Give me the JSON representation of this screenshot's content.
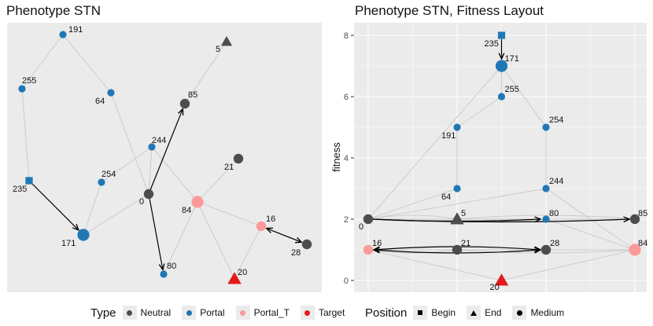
{
  "colors": {
    "Neutral": "#4d4d4d",
    "Portal": "#1f78b4",
    "Portal_T": "#fb9a99",
    "Target": "#e31a1c",
    "panel": "#ebebeb",
    "grid": "#ffffff",
    "edge": "#cccccc"
  },
  "left_panel": {
    "title": "Phenotype STN",
    "nodes": [
      {
        "id": "191",
        "type": "Portal",
        "position": "Medium",
        "size": "small"
      },
      {
        "id": "5",
        "type": "Neutral",
        "position": "End",
        "size": "medium"
      },
      {
        "id": "255",
        "type": "Portal",
        "position": "Medium",
        "size": "small"
      },
      {
        "id": "64",
        "type": "Portal",
        "position": "Medium",
        "size": "small"
      },
      {
        "id": "85",
        "type": "Neutral",
        "position": "Medium",
        "size": "medium"
      },
      {
        "id": "244",
        "type": "Portal",
        "position": "Medium",
        "size": "small"
      },
      {
        "id": "21",
        "type": "Neutral",
        "position": "Medium",
        "size": "medium"
      },
      {
        "id": "235",
        "type": "Portal",
        "position": "Begin",
        "size": "small"
      },
      {
        "id": "254",
        "type": "Portal",
        "position": "Medium",
        "size": "small"
      },
      {
        "id": "0",
        "type": "Neutral",
        "position": "Medium",
        "size": "medium"
      },
      {
        "id": "84",
        "type": "Portal_T",
        "position": "Medium",
        "size": "large"
      },
      {
        "id": "16",
        "type": "Portal_T",
        "position": "Medium",
        "size": "medium"
      },
      {
        "id": "171",
        "type": "Portal",
        "position": "Medium",
        "size": "large"
      },
      {
        "id": "28",
        "type": "Neutral",
        "position": "Medium",
        "size": "medium"
      },
      {
        "id": "80",
        "type": "Portal",
        "position": "Medium",
        "size": "small"
      },
      {
        "id": "20",
        "type": "Target",
        "position": "End",
        "size": "large"
      }
    ],
    "edges": [
      [
        "191",
        "255"
      ],
      [
        "191",
        "64"
      ],
      [
        "255",
        "235"
      ],
      [
        "64",
        "0"
      ],
      [
        "244",
        "0"
      ],
      [
        "244",
        "254"
      ],
      [
        "244",
        "84"
      ],
      [
        "254",
        "171"
      ],
      [
        "0",
        "171"
      ],
      [
        "84",
        "21"
      ],
      [
        "84",
        "80"
      ],
      [
        "84",
        "20"
      ],
      [
        "84",
        "16"
      ],
      [
        "16",
        "20"
      ],
      [
        "5",
        "85"
      ],
      [
        "85",
        "0"
      ]
    ],
    "arrows": [
      [
        "235",
        "171",
        "single"
      ],
      [
        "0",
        "85",
        "single"
      ],
      [
        "0",
        "80",
        "single"
      ],
      [
        "16",
        "28",
        "double"
      ]
    ]
  },
  "right_panel": {
    "title": "Phenotype STN, Fitness Layout",
    "ylabel": "fitness",
    "ylim": [
      0,
      8
    ],
    "yticks": [
      "0",
      "2",
      "4",
      "6",
      "8"
    ],
    "nodes": [
      {
        "id": "235",
        "type": "Portal",
        "position": "Begin",
        "fitness": 8
      },
      {
        "id": "171",
        "type": "Portal",
        "position": "Medium",
        "fitness": 7
      },
      {
        "id": "255",
        "type": "Portal",
        "position": "Medium",
        "fitness": 6
      },
      {
        "id": "191",
        "type": "Portal",
        "position": "Medium",
        "fitness": 5
      },
      {
        "id": "254",
        "type": "Portal",
        "position": "Medium",
        "fitness": 5
      },
      {
        "id": "64",
        "type": "Portal",
        "position": "Medium",
        "fitness": 3
      },
      {
        "id": "244",
        "type": "Portal",
        "position": "Medium",
        "fitness": 3
      },
      {
        "id": "0",
        "type": "Neutral",
        "position": "Medium",
        "fitness": 2
      },
      {
        "id": "5",
        "type": "Neutral",
        "position": "End",
        "fitness": 2
      },
      {
        "id": "80",
        "type": "Portal",
        "position": "Medium",
        "fitness": 2
      },
      {
        "id": "85",
        "type": "Neutral",
        "position": "Medium",
        "fitness": 2
      },
      {
        "id": "16",
        "type": "Portal_T",
        "position": "Medium",
        "fitness": 1
      },
      {
        "id": "21",
        "type": "Neutral",
        "position": "Medium",
        "fitness": 1
      },
      {
        "id": "28",
        "type": "Neutral",
        "position": "Medium",
        "fitness": 1
      },
      {
        "id": "84",
        "type": "Portal_T",
        "position": "Medium",
        "fitness": 1
      },
      {
        "id": "20",
        "type": "Target",
        "position": "End",
        "fitness": 0
      }
    ]
  },
  "legend": {
    "type_title": "Type",
    "types": [
      "Neutral",
      "Portal",
      "Portal_T",
      "Target"
    ],
    "position_title": "Position",
    "positions": [
      "Begin",
      "End",
      "Medium"
    ]
  }
}
